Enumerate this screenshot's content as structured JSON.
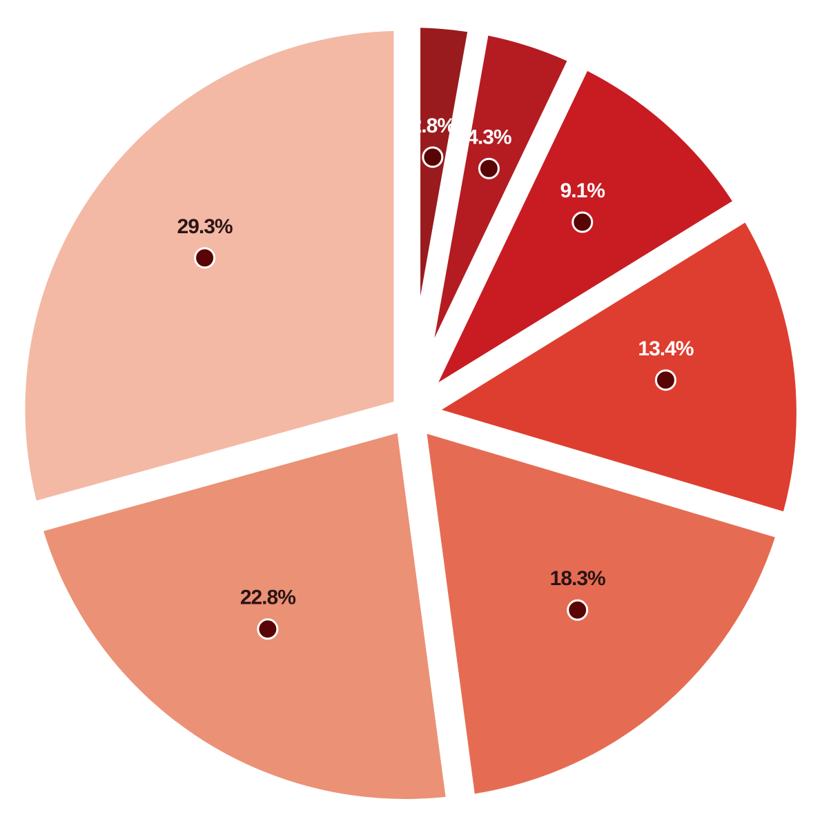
{
  "chart_data": {
    "type": "pie",
    "title": "",
    "slices": [
      {
        "label": "2.8%",
        "value": 2.8,
        "color": "#991b1e",
        "label_color": "#ffffff"
      },
      {
        "label": "4.3%",
        "value": 4.3,
        "color": "#b41c22",
        "label_color": "#ffffff"
      },
      {
        "label": "9.1%",
        "value": 9.1,
        "color": "#c81c22",
        "label_color": "#ffffff"
      },
      {
        "label": "13.4%",
        "value": 13.4,
        "color": "#de3e2f",
        "label_color": "#ffffff"
      },
      {
        "label": "18.3%",
        "value": 18.3,
        "color": "#e56c53",
        "label_color": "#2a1414"
      },
      {
        "label": "22.8%",
        "value": 22.8,
        "color": "#eb9176",
        "label_color": "#2a1414"
      },
      {
        "label": "29.3%",
        "value": 29.3,
        "color": "#f3b9a5",
        "label_color": "#2a1414"
      }
    ],
    "marker_color": "#5a0505",
    "marker_stroke": "#ffffff",
    "start_angle_deg": 0,
    "direction": "clockwise",
    "exploded": true,
    "legend": "none"
  }
}
